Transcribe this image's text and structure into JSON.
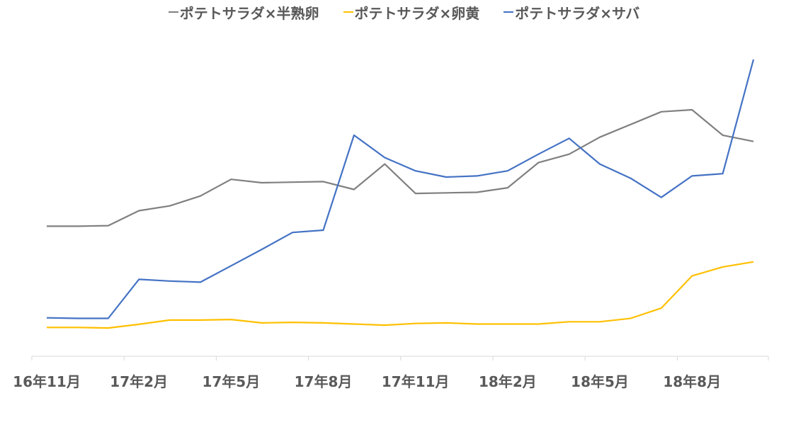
{
  "chart_data": {
    "type": "line",
    "title": "",
    "xlabel": "",
    "ylabel": "",
    "x": [
      "16年11月",
      "16年12月",
      "17年1月",
      "17年2月",
      "17年3月",
      "17年4月",
      "17年5月",
      "17年6月",
      "17年7月",
      "17年8月",
      "17年9月",
      "17年10月",
      "17年11月",
      "17年12月",
      "18年1月",
      "18年2月",
      "18年3月",
      "18年4月",
      "18年5月",
      "18年6月",
      "18年7月",
      "18年8月",
      "18年9月",
      "18年10月"
    ],
    "tick_labels": [
      "16年11月",
      "17年2月",
      "17年5月",
      "17年8月",
      "17年11月",
      "18年2月",
      "18年5月",
      "18年8月"
    ],
    "ylim": [
      0,
      100
    ],
    "grid": false,
    "legend_position": "top",
    "series": [
      {
        "name": "ポテトサラダ×半熟卵",
        "color": "#808080",
        "values": [
          41,
          41,
          41.2,
          46.5,
          48.2,
          51.7,
          57.6,
          56.4,
          56.6,
          56.8,
          54,
          63,
          52.6,
          52.8,
          53,
          54.6,
          63.5,
          66.5,
          72.5,
          77,
          81.5,
          82.2,
          73.2,
          71
        ]
      },
      {
        "name": "ポテトサラダ×卵黄",
        "color": "#FFC000",
        "values": [
          5.2,
          5.2,
          5,
          6.3,
          7.8,
          7.8,
          8,
          6.8,
          7,
          6.8,
          6.4,
          6,
          6.6,
          6.8,
          6.4,
          6.4,
          6.4,
          7.2,
          7.2,
          8.4,
          12,
          23.4,
          26.6,
          28.4
        ]
      },
      {
        "name": "ポテトサラダ×サバ",
        "color": "#4472C4",
        "values": [
          8.6,
          8.4,
          8.4,
          22.2,
          21.6,
          21.2,
          27,
          32.8,
          38.8,
          39.6,
          73.2,
          65.3,
          60.6,
          58.4,
          58.8,
          60.6,
          66.5,
          72.1,
          63,
          58,
          51.2,
          58.8,
          59.6,
          100
        ]
      }
    ]
  }
}
